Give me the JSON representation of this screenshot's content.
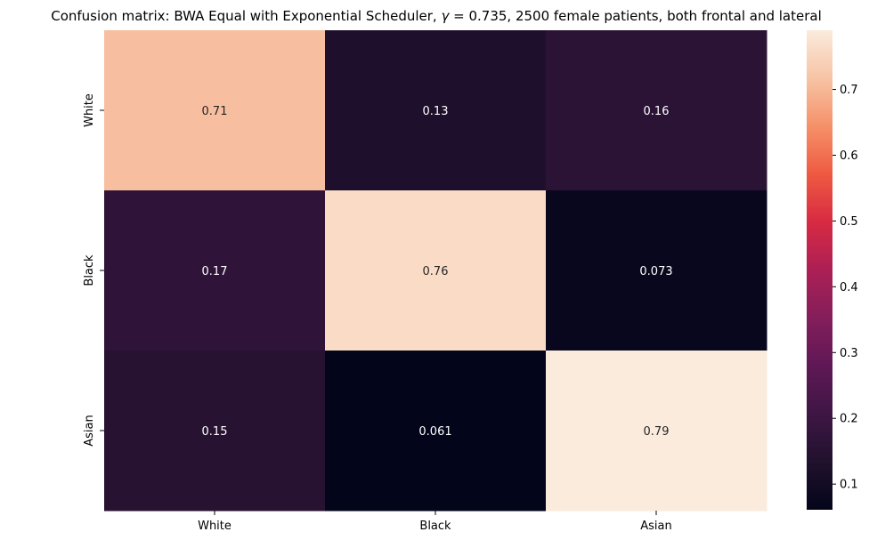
{
  "chart_data": {
    "type": "heatmap",
    "title_prefix": "Confusion matrix: BWA Equal with Exponential Scheduler, ",
    "title_gamma": "γ",
    "title_eq": " = 0.735",
    "title_suffix": ", 2500 female patients, both frontal and lateral",
    "row_labels": [
      "White",
      "Black",
      "Asian"
    ],
    "col_labels": [
      "White",
      "Black",
      "Asian"
    ],
    "values": [
      [
        0.71,
        0.13,
        0.16
      ],
      [
        0.17,
        0.76,
        0.073
      ],
      [
        0.15,
        0.061,
        0.79
      ]
    ],
    "value_labels": [
      [
        "0.71",
        "0.13",
        "0.16"
      ],
      [
        "0.17",
        "0.76",
        "0.073"
      ],
      [
        "0.15",
        "0.061",
        "0.79"
      ]
    ],
    "colormap": "rocket",
    "vmin": 0.061,
    "vmax": 0.79,
    "colorbar_ticks": [
      0.1,
      0.2,
      0.3,
      0.4,
      0.5,
      0.6,
      0.7
    ],
    "colorbar_tick_labels": [
      "0.1",
      "0.2",
      "0.3",
      "0.4",
      "0.5",
      "0.6",
      "0.7"
    ]
  }
}
